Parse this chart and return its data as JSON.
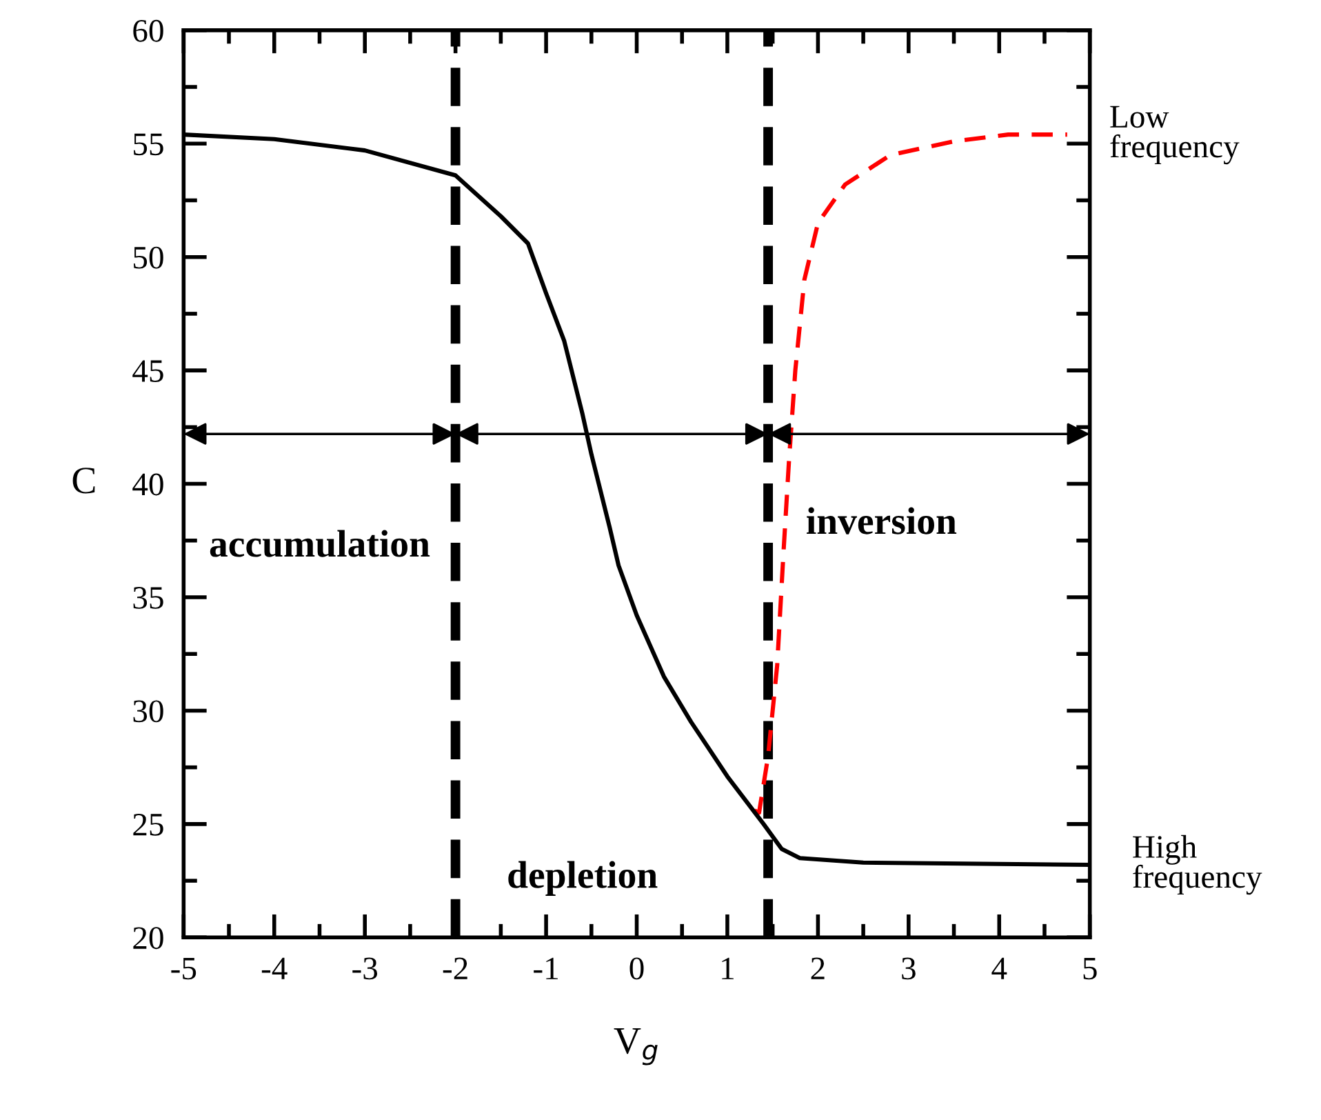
{
  "chart_data": {
    "type": "line",
    "xlabel": "V$_{g}$",
    "ylabel": "C",
    "xlim": [
      -5,
      5
    ],
    "xticks": [
      -5,
      -4,
      -3,
      -2,
      -1,
      0,
      1,
      2,
      3,
      4,
      5
    ],
    "ylim": [
      20,
      60
    ],
    "yticks": [
      20,
      25,
      30,
      35,
      40,
      45,
      50,
      55,
      60
    ],
    "grid": false,
    "marker": "none",
    "series": [
      {
        "color": "#ff0000",
        "line_style": "dashed",
        "x": [
          1.3,
          1.35,
          1.45,
          1.55,
          1.62,
          1.68,
          1.75,
          1.85,
          2.0,
          2.3,
          2.8,
          3.5,
          4.1,
          4.75
        ],
        "values": [
          25.6,
          25.5,
          28,
          32,
          37,
          41,
          45,
          49,
          51.5,
          53.2,
          54.5,
          55.1,
          55.4,
          55.4
        ]
      },
      {
        "color": "#000000",
        "line_style": "solid",
        "x": [
          -5,
          -4,
          -3,
          -2,
          -1.5,
          -1.2,
          -1.0,
          -0.8,
          -0.6,
          -0.5,
          -0.3,
          -0.2,
          0,
          0.3,
          0.6,
          1.0,
          1.4,
          1.6,
          1.8,
          2.5,
          5
        ],
        "values": [
          55.4,
          55.2,
          54.7,
          53.6,
          51.8,
          50.6,
          48.4,
          46.3,
          43.1,
          41.3,
          38.1,
          36.4,
          34.2,
          31.5,
          29.5,
          27.1,
          25.0,
          23.9,
          23.5,
          23.3,
          23.2
        ]
      }
    ],
    "ref_lines": [
      {
        "axis": "x",
        "value": -2,
        "color": "#000000",
        "line_style": "dashed"
      },
      {
        "axis": "x",
        "value": 1.45,
        "color": "#000000",
        "line_style": "dashed"
      }
    ],
    "annotations": [
      "accumulation",
      "depletion",
      "inversion",
      {
        "text": "Low frequency",
        "x": 4.75,
        "y": 55.4
      },
      {
        "text": "High frequency",
        "x": 5,
        "y": 23.2
      }
    ]
  }
}
